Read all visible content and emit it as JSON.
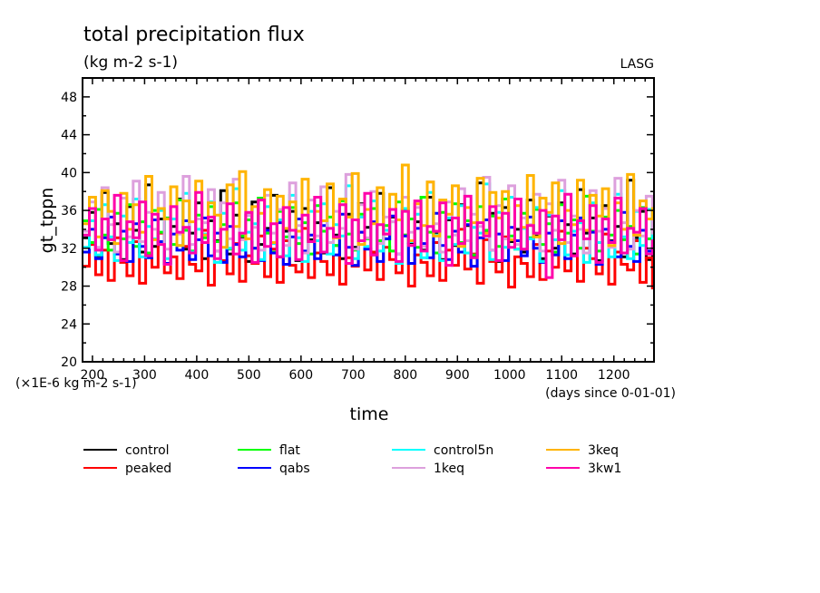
{
  "chart_data": {
    "type": "line",
    "title": "total precipitation flux",
    "subtitle": "(kg m-2 s-1)",
    "credit": "LASG",
    "xlabel": "time",
    "xunits": "(days since 0-01-01)",
    "ylabel": "gt_tppn",
    "yscale_note": "(×1E-6 kg m-2 s-1)",
    "xlim": [
      181,
      1277
    ],
    "ylim": [
      20,
      50
    ],
    "xticks_major": [
      200,
      300,
      400,
      500,
      600,
      700,
      800,
      900,
      1000,
      1100,
      1200
    ],
    "xticks_minor_step": 20,
    "yticks_major": [
      20,
      24,
      28,
      32,
      36,
      40,
      44,
      48
    ],
    "yticks_minor_step": 2,
    "grid": false,
    "legend_position": "bottom",
    "x_sample_start": 182,
    "x_sample_step": 12,
    "series": [
      {
        "name": "control",
        "color": "#000000",
        "values": [
          33.1,
          35.8,
          31.2,
          37.9,
          32.5,
          34.6,
          30.8,
          36.4,
          33.9,
          31.6,
          38.7,
          32.2,
          35.1,
          30.4,
          34.3,
          37.2,
          31.9,
          33.6,
          36.8,
          30.9,
          34.9,
          32.8,
          38.1,
          31.4,
          35.5,
          33.2,
          30.6,
          36.9,
          32.4,
          34.1,
          37.6,
          31.1,
          33.8,
          35.9,
          30.7,
          36.2,
          32.9,
          34.7,
          31.5,
          38.4,
          33.4,
          30.9,
          35.6,
          32.1,
          36.7,
          34.2,
          31.3,
          37.8,
          33.0,
          35.3,
          30.5,
          36.1,
          32.6,
          34.8,
          31.8,
          37.4,
          33.5,
          30.8,
          35.0,
          32.3,
          36.6,
          34.4,
          31.2,
          38.9,
          33.7,
          35.7,
          30.6,
          36.3,
          32.7,
          34.0,
          31.6,
          37.1,
          33.3,
          30.9,
          35.4,
          32.0,
          36.8,
          34.5,
          31.4,
          38.2,
          33.6,
          35.2,
          30.7,
          36.5,
          32.8,
          34.3,
          31.1,
          39.2,
          33.1,
          35.9,
          30.8,
          36.0
        ]
      },
      {
        "name": "peaked",
        "color": "#ff0000",
        "values": [
          30.1,
          32.4,
          29.2,
          31.8,
          28.6,
          33.1,
          30.5,
          29.1,
          32.7,
          28.3,
          31.4,
          30.0,
          33.6,
          29.4,
          31.1,
          28.8,
          32.2,
          30.3,
          29.6,
          33.9,
          28.1,
          31.7,
          30.7,
          29.3,
          32.5,
          28.5,
          31.2,
          30.4,
          33.3,
          29.0,
          31.9,
          28.4,
          32.8,
          30.2,
          29.5,
          34.1,
          28.9,
          31.5,
          30.6,
          29.2,
          32.3,
          28.2,
          31.0,
          30.1,
          33.7,
          29.7,
          31.6,
          28.7,
          32.1,
          30.8,
          29.4,
          33.4,
          28.0,
          31.3,
          30.5,
          29.1,
          32.6,
          28.6,
          31.8,
          30.2,
          34.0,
          29.8,
          31.4,
          28.3,
          32.9,
          30.6,
          29.5,
          33.2,
          27.9,
          31.1,
          30.4,
          29.0,
          32.4,
          28.7,
          31.7,
          30.0,
          33.8,
          29.6,
          31.2,
          28.5,
          32.0,
          30.9,
          29.3,
          33.5,
          28.2,
          31.6,
          30.3,
          29.7,
          32.8,
          28.4,
          31.0,
          27.8
        ]
      },
      {
        "name": "flat",
        "color": "#00ff00",
        "values": [
          34.9,
          32.6,
          36.1,
          33.4,
          31.8,
          35.7,
          33.0,
          36.6,
          32.2,
          34.8,
          31.5,
          36.0,
          33.7,
          35.2,
          32.4,
          37.1,
          33.9,
          31.7,
          35.5,
          33.1,
          36.4,
          32.7,
          34.5,
          31.9,
          36.8,
          33.3,
          35.0,
          32.0,
          37.3,
          33.6,
          31.6,
          35.9,
          33.2,
          36.3,
          32.5,
          34.7,
          31.4,
          36.5,
          33.8,
          35.3,
          32.3,
          37.0,
          33.5,
          31.8,
          35.6,
          33.0,
          36.2,
          32.8,
          34.4,
          31.7,
          36.9,
          33.4,
          35.1,
          32.1,
          37.4,
          33.7,
          31.5,
          35.8,
          33.2,
          36.7,
          32.6,
          34.9,
          31.3,
          36.4,
          33.9,
          35.4,
          32.2,
          37.2,
          33.3,
          31.9,
          35.7,
          33.1,
          36.1,
          32.4,
          34.6,
          31.6,
          36.6,
          33.6,
          35.0,
          32.0,
          37.5,
          33.8,
          31.7,
          35.3,
          33.4,
          36.0,
          32.9,
          34.3,
          31.4,
          36.3,
          33.0,
          34.8
        ]
      },
      {
        "name": "qabs",
        "color": "#0000ff",
        "values": [
          31.6,
          34.0,
          30.9,
          33.1,
          35.3,
          31.4,
          33.8,
          30.6,
          34.6,
          32.2,
          31.0,
          35.0,
          32.7,
          30.4,
          33.5,
          31.8,
          34.9,
          30.8,
          32.9,
          35.2,
          31.2,
          33.6,
          30.5,
          34.3,
          32.4,
          31.1,
          35.5,
          32.0,
          30.7,
          33.9,
          31.5,
          34.7,
          30.3,
          33.2,
          35.1,
          31.7,
          33.4,
          30.9,
          34.4,
          32.6,
          31.3,
          35.6,
          32.1,
          30.2,
          33.7,
          31.9,
          34.8,
          30.6,
          33.0,
          35.4,
          31.4,
          33.3,
          30.4,
          34.1,
          32.5,
          31.0,
          35.7,
          32.3,
          30.8,
          33.8,
          31.6,
          34.5,
          30.1,
          33.1,
          35.0,
          31.8,
          33.5,
          30.7,
          34.2,
          32.8,
          31.2,
          35.3,
          32.0,
          30.5,
          33.6,
          31.3,
          34.9,
          30.9,
          33.4,
          35.2,
          31.5,
          33.7,
          30.3,
          34.0,
          32.7,
          31.1,
          35.8,
          32.2,
          30.6,
          33.9,
          31.7,
          32.1
        ]
      },
      {
        "name": "control5n",
        "color": "#00ffff",
        "values": [
          32.1,
          34.9,
          31.3,
          36.6,
          33.2,
          30.7,
          35.4,
          32.6,
          37.2,
          31.1,
          34.3,
          33.0,
          36.0,
          30.9,
          35.1,
          32.3,
          37.8,
          31.6,
          34.0,
          33.5,
          36.9,
          30.5,
          35.7,
          32.0,
          38.3,
          31.8,
          33.7,
          34.6,
          30.8,
          36.4,
          32.5,
          35.0,
          31.2,
          37.6,
          33.1,
          30.6,
          35.9,
          32.8,
          36.7,
          31.4,
          34.5,
          33.3,
          38.6,
          30.9,
          35.3,
          32.2,
          37.0,
          31.7,
          33.9,
          34.8,
          30.4,
          36.2,
          32.7,
          35.6,
          31.0,
          37.9,
          33.4,
          30.7,
          35.2,
          32.4,
          36.5,
          31.5,
          34.2,
          33.6,
          38.8,
          30.8,
          35.8,
          32.1,
          37.4,
          31.9,
          34.1,
          33.0,
          36.3,
          30.6,
          35.5,
          32.9,
          38.1,
          31.3,
          33.8,
          34.7,
          30.5,
          36.8,
          32.6,
          35.1,
          31.1,
          37.7,
          33.2,
          30.9,
          35.9,
          32.3,
          36.1,
          32.5
        ]
      },
      {
        "name": "1keq",
        "color": "#dda0dd",
        "values": [
          33.8,
          36.9,
          32.1,
          38.4,
          34.5,
          31.6,
          37.3,
          33.2,
          39.1,
          32.7,
          35.8,
          34.0,
          37.9,
          31.9,
          36.4,
          33.5,
          39.6,
          32.4,
          35.1,
          34.7,
          38.2,
          31.7,
          36.8,
          33.0,
          39.3,
          32.9,
          35.5,
          34.2,
          31.8,
          37.6,
          33.6,
          36.1,
          32.3,
          38.9,
          34.4,
          31.5,
          37.1,
          33.3,
          38.5,
          32.6,
          35.9,
          34.1,
          39.8,
          31.9,
          36.6,
          33.1,
          38.0,
          32.5,
          35.3,
          34.8,
          31.4,
          37.4,
          33.7,
          36.3,
          32.2,
          39.0,
          34.6,
          31.6,
          36.9,
          33.4,
          38.3,
          32.8,
          35.6,
          34.3,
          39.5,
          31.8,
          36.5,
          33.0,
          38.6,
          32.4,
          35.2,
          34.5,
          37.7,
          31.7,
          36.7,
          33.9,
          39.2,
          32.6,
          35.4,
          34.0,
          31.5,
          38.1,
          33.8,
          36.2,
          32.1,
          39.4,
          34.7,
          31.9,
          36.0,
          33.3,
          37.5,
          33.6
        ]
      },
      {
        "name": "3keq",
        "color": "#ffb400",
        "values": [
          34.6,
          37.4,
          33.2,
          38.1,
          35.9,
          32.5,
          37.8,
          34.0,
          36.6,
          33.7,
          39.6,
          32.9,
          36.2,
          35.1,
          38.5,
          32.3,
          37.0,
          34.8,
          39.1,
          33.4,
          36.8,
          35.5,
          32.1,
          38.7,
          34.3,
          40.1,
          33.0,
          36.4,
          35.7,
          38.2,
          32.6,
          37.5,
          34.1,
          36.9,
          33.8,
          39.3,
          32.7,
          35.9,
          34.9,
          38.8,
          33.1,
          37.2,
          35.3,
          39.9,
          32.4,
          36.1,
          34.6,
          38.4,
          33.5,
          37.7,
          35.0,
          40.8,
          32.8,
          36.7,
          34.4,
          39.0,
          33.3,
          37.1,
          35.6,
          38.6,
          32.2,
          36.3,
          34.7,
          39.4,
          33.6,
          37.9,
          35.2,
          38.0,
          32.9,
          36.5,
          34.2,
          39.7,
          33.2,
          37.3,
          35.8,
          38.9,
          32.5,
          36.0,
          34.5,
          39.2,
          33.9,
          37.6,
          35.4,
          38.3,
          32.3,
          36.8,
          34.0,
          39.8,
          33.4,
          37.0,
          35.1,
          36.2
        ]
      },
      {
        "name": "3kw1",
        "color": "#ff00aa",
        "values": [
          33.4,
          36.2,
          31.8,
          35.1,
          32.9,
          37.6,
          30.7,
          34.8,
          33.1,
          36.9,
          31.2,
          35.6,
          32.4,
          30.3,
          36.4,
          33.7,
          34.2,
          31.5,
          37.9,
          32.6,
          35.3,
          30.9,
          34.0,
          36.7,
          31.4,
          33.6,
          35.8,
          30.5,
          37.1,
          32.2,
          34.6,
          31.1,
          36.3,
          33.9,
          30.8,
          35.5,
          32.7,
          37.4,
          31.6,
          34.1,
          33.2,
          36.6,
          30.4,
          35.0,
          32.8,
          37.8,
          31.3,
          34.5,
          33.5,
          36.1,
          30.6,
          35.9,
          32.3,
          37.0,
          31.7,
          34.3,
          33.8,
          36.8,
          30.2,
          35.2,
          32.5,
          37.5,
          31.0,
          34.7,
          33.3,
          36.4,
          30.7,
          35.7,
          32.1,
          37.2,
          31.9,
          34.4,
          33.6,
          36.0,
          28.9,
          35.4,
          32.9,
          37.7,
          31.2,
          34.9,
          33.0,
          36.5,
          30.5,
          35.1,
          32.6,
          37.3,
          31.5,
          34.1,
          33.7,
          36.2,
          31.4,
          32.8
        ]
      }
    ]
  }
}
